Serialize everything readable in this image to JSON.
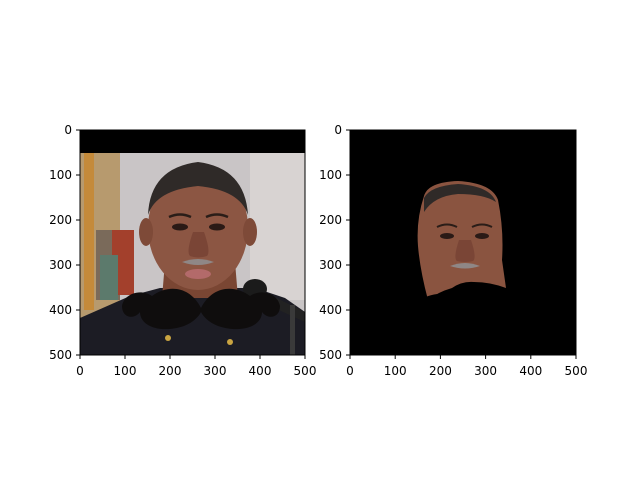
{
  "figure": {
    "background": "#ffffff"
  },
  "chart_data": [
    {
      "type": "image",
      "title": "",
      "xlabel": "",
      "ylabel": "",
      "xlim": [
        0,
        500
      ],
      "ylim": [
        500,
        0
      ],
      "xticks": [
        0,
        100,
        200,
        300,
        400,
        500
      ],
      "yticks": [
        0,
        100,
        200,
        300,
        400,
        500
      ],
      "content": "photo-with-mustache-overlay",
      "colors": {
        "mask": "#000000",
        "mustache": "#0f0d0d",
        "skin": "#8a5440",
        "shirt": "#1a1a22",
        "backdrop": "#c7c3c4"
      }
    },
    {
      "type": "image",
      "title": "",
      "xlabel": "",
      "ylabel": "",
      "xlim": [
        0,
        500
      ],
      "ylim": [
        500,
        0
      ],
      "xticks": [
        0,
        100,
        200,
        300,
        400,
        500
      ],
      "yticks": [
        0,
        100,
        200,
        300,
        400,
        500
      ],
      "content": "masked-face-cutout",
      "colors": {
        "background": "#000000",
        "skin": "#8a5440"
      }
    }
  ]
}
